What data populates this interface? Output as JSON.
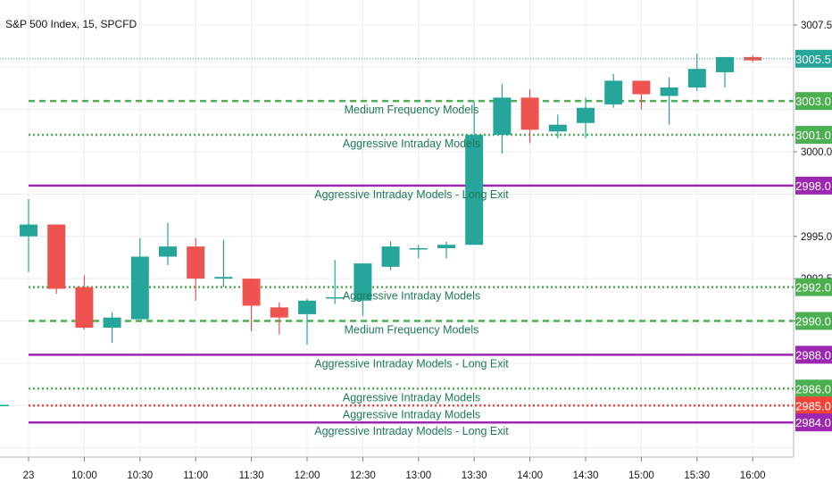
{
  "chart_data": {
    "type": "candlestick",
    "title": "S&P 500 Index, 15, SPCFD",
    "colors": {
      "up": "#26a69a",
      "down": "#ef5350",
      "grid": "#e9ecf0",
      "level_green": "#4caf50",
      "level_red": "#f44336",
      "level_purple": "#9c27b0",
      "annotation_text": "#1e7a5a",
      "current_price": "#26a69a"
    },
    "y_ticks": [
      "3007.5",
      "3000.0",
      "2995.0",
      "2992.5",
      "2990.0"
    ],
    "x_ticks": [
      "23",
      "10:00",
      "10:30",
      "11:00",
      "11:30",
      "12:00",
      "12:30",
      "13:00",
      "13:30",
      "14:00",
      "14:30",
      "15:00",
      "15:30",
      "16:00"
    ],
    "current_price": "3005.5",
    "candles": [
      {
        "o": 2995.0,
        "h": 2997.2,
        "l": 2992.9,
        "c": 2995.7
      },
      {
        "o": 2995.7,
        "h": 2995.7,
        "l": 2991.6,
        "c": 2991.9
      },
      {
        "o": 2992.0,
        "h": 2992.7,
        "l": 2989.5,
        "c": 2989.6
      },
      {
        "o": 2989.6,
        "h": 2990.5,
        "l": 2988.7,
        "c": 2990.2
      },
      {
        "o": 2990.1,
        "h": 2994.9,
        "l": 2990.1,
        "c": 2993.8
      },
      {
        "o": 2993.8,
        "h": 2995.8,
        "l": 2993.3,
        "c": 2994.4
      },
      {
        "o": 2994.4,
        "h": 2994.9,
        "l": 2991.2,
        "c": 2992.5
      },
      {
        "o": 2992.5,
        "h": 2994.8,
        "l": 2992.0,
        "c": 2992.6
      },
      {
        "o": 2992.5,
        "h": 2992.5,
        "l": 2989.4,
        "c": 2990.9
      },
      {
        "o": 2990.8,
        "h": 2991.1,
        "l": 2989.2,
        "c": 2990.2
      },
      {
        "o": 2990.4,
        "h": 2991.3,
        "l": 2988.6,
        "c": 2991.2
      },
      {
        "o": 2991.4,
        "h": 2993.6,
        "l": 2991.0,
        "c": 2991.4
      },
      {
        "o": 2991.2,
        "h": 2993.4,
        "l": 2990.3,
        "c": 2993.4
      },
      {
        "o": 2993.2,
        "h": 2994.7,
        "l": 2993.0,
        "c": 2994.4
      },
      {
        "o": 2994.3,
        "h": 2994.5,
        "l": 2993.7,
        "c": 2994.3
      },
      {
        "o": 2994.3,
        "h": 2994.7,
        "l": 2993.7,
        "c": 2994.5
      },
      {
        "o": 2994.5,
        "h": 3003.0,
        "l": 2994.5,
        "c": 3001.0
      },
      {
        "o": 3001.0,
        "h": 3004.0,
        "l": 2999.9,
        "c": 3003.2
      },
      {
        "o": 3003.2,
        "h": 3003.7,
        "l": 3000.5,
        "c": 3001.3
      },
      {
        "o": 3001.2,
        "h": 3002.2,
        "l": 3000.8,
        "c": 3001.6
      },
      {
        "o": 3001.7,
        "h": 3003.2,
        "l": 3000.8,
        "c": 3002.6
      },
      {
        "o": 3002.8,
        "h": 3004.6,
        "l": 3002.6,
        "c": 3004.2
      },
      {
        "o": 3004.2,
        "h": 3004.2,
        "l": 3002.5,
        "c": 3003.4
      },
      {
        "o": 3003.3,
        "h": 3004.4,
        "l": 3001.6,
        "c": 3003.8
      },
      {
        "o": 3003.8,
        "h": 3005.8,
        "l": 3003.6,
        "c": 3004.9
      },
      {
        "o": 3004.7,
        "h": 3005.6,
        "l": 3003.8,
        "c": 3005.6
      },
      {
        "o": 3005.6,
        "h": 3005.7,
        "l": 3005.3,
        "c": 3005.4
      }
    ],
    "levels": [
      {
        "price": 3003.0,
        "label": "3003.0",
        "annotation": "Medium Frequency Models",
        "style": "dashed",
        "color": "green"
      },
      {
        "price": 3001.0,
        "label": "3001.0",
        "annotation": "Aggressive Intraday Models",
        "style": "dotted",
        "color": "green"
      },
      {
        "price": 2998.0,
        "label": "2998.0",
        "annotation": "Aggressive Intraday Models - Long Exit",
        "style": "solid",
        "color": "purple"
      },
      {
        "price": 2992.0,
        "label": "2992.0",
        "annotation": "Aggressive Intraday Models",
        "style": "dotted",
        "color": "green"
      },
      {
        "price": 2990.0,
        "label": "2990.0",
        "annotation": "Medium Frequency Models",
        "style": "dashed",
        "color": "green"
      },
      {
        "price": 2988.0,
        "label": "2988.0",
        "annotation": "Aggressive Intraday Models - Long Exit",
        "style": "solid",
        "color": "purple"
      },
      {
        "price": 2986.0,
        "label": "2986.0",
        "annotation": "Aggressive Intraday Models",
        "style": "dotted",
        "color": "green"
      },
      {
        "price": 2985.0,
        "label": "2985.0",
        "annotation": "Aggressive Intraday Models",
        "style": "dotted",
        "color": "red"
      },
      {
        "price": 2984.0,
        "label": "2984.0",
        "annotation": "Aggressive Intraday Models - Long Exit",
        "style": "solid",
        "color": "purple"
      }
    ]
  }
}
